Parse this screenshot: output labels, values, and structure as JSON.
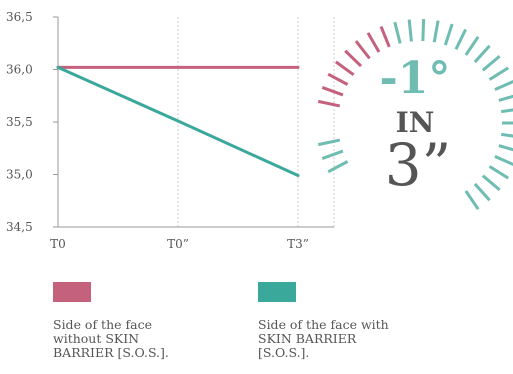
{
  "chart_data": {
    "type": "line",
    "categories": [
      "T0",
      "T0”",
      "T3”"
    ],
    "series": [
      {
        "name": "Side of the face without SKIN BARRIER [S.O.S.].",
        "color": "#c4627e",
        "values": [
          36.02,
          36.02,
          36.02
        ]
      },
      {
        "name": "Side of the face with SKIN BARRIER [S.O.S.].",
        "color": "#3aa89a",
        "values": [
          36.02,
          35.51,
          34.99
        ]
      }
    ],
    "ylim": [
      34.5,
      36.5
    ],
    "y_ticks": [
      "34,5",
      "35,0",
      "35,5",
      "36,0",
      "36,5"
    ],
    "x_ticks": [
      "T0",
      "T0”",
      "T3”"
    ],
    "grid": "vertical dotted",
    "legend_position": "bottom"
  },
  "legend": [
    {
      "color": "#c4627e",
      "lines": [
        "Side of the face",
        "without SKIN",
        "BARRIER [S.O.S.]."
      ]
    },
    {
      "color": "#3aa89a",
      "lines": [
        "Side of the face with",
        "SKIN BARRIER",
        "[S.O.S.]."
      ]
    }
  ],
  "badge": {
    "value": "-1°",
    "word": "IN",
    "time": "3”",
    "value_color": "#6fbcb2",
    "text_color": "#555555",
    "tick_colors": [
      "#c4627e",
      "#6fbcb2"
    ]
  }
}
